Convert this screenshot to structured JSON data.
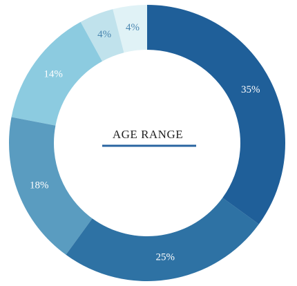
{
  "chart_data": {
    "type": "donut",
    "title": "AGE RANGE",
    "values": [
      35,
      25,
      18,
      14,
      4,
      4
    ],
    "value_labels": [
      "35%",
      "25%",
      "18%",
      "14%",
      "4%",
      "4%"
    ],
    "colors": [
      "#1f5f99",
      "#2e72a4",
      "#5a9cc0",
      "#8ccbe0",
      "#c0e2ec",
      "#e0f2f6"
    ],
    "label_colors": [
      "#ffffff",
      "#ffffff",
      "#ffffff",
      "#ffffff",
      "#4a86b0",
      "#4a86b0"
    ],
    "start_angle": "top",
    "direction": "clockwise"
  }
}
